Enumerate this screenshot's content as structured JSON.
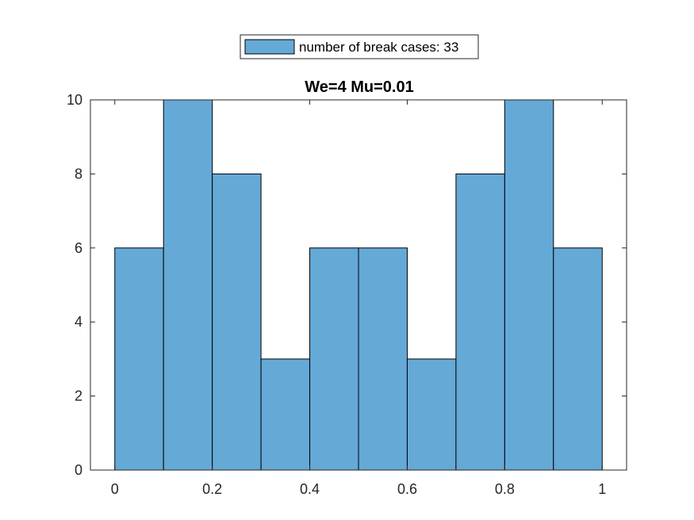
{
  "chart_data": {
    "type": "bar",
    "title": "We=4 Mu=0.01",
    "xlabel": "",
    "ylabel": "",
    "bin_edges": [
      0,
      0.1,
      0.2,
      0.3,
      0.4,
      0.5,
      0.6,
      0.7,
      0.8,
      0.9,
      1.0
    ],
    "values": [
      6,
      10,
      8,
      3,
      6,
      6,
      3,
      8,
      10,
      6
    ],
    "xlim": [
      -0.05,
      1.05
    ],
    "ylim": [
      0,
      10
    ],
    "xticks": [
      0,
      0.2,
      0.4,
      0.6,
      0.8,
      1
    ],
    "xtick_labels": [
      "0",
      "0.2",
      "0.4",
      "0.6",
      "0.8",
      "1"
    ],
    "yticks": [
      0,
      2,
      4,
      6,
      8,
      10
    ],
    "ytick_labels": [
      "0",
      "2",
      "4",
      "6",
      "8",
      "10"
    ],
    "grid": false,
    "legend": {
      "placement": "top-center",
      "entries": [
        "number of break cases: 33"
      ]
    },
    "colors": {
      "bar_fill": "#65a9d7",
      "bar_edge": "#000000",
      "axis": "#262626"
    }
  }
}
